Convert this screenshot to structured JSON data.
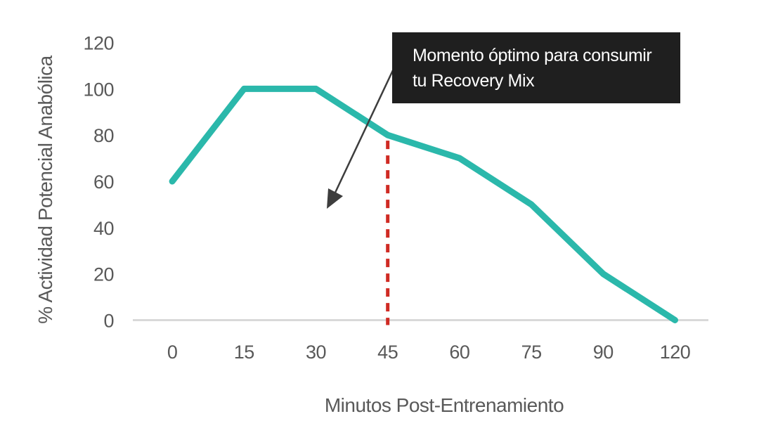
{
  "chart_data": {
    "type": "line",
    "categories": [
      "0",
      "15",
      "30",
      "45",
      "60",
      "75",
      "90",
      "120"
    ],
    "values": [
      60,
      100,
      100,
      80,
      70,
      50,
      20,
      0
    ],
    "xlabel": "Minutos Post-Entrenamiento",
    "ylabel": "% Actividad Potencial Anabólica",
    "yticks": [
      "0",
      "20",
      "40",
      "60",
      "80",
      "100",
      "120"
    ],
    "ylim": [
      0,
      120
    ],
    "grid": false,
    "legend": "none",
    "line_color": "#2bb8ab",
    "axis_line_color": "#d9d9d9",
    "tick_label_color": "#595959",
    "reference_line": {
      "at_category": "45",
      "at_value": 80,
      "style": "dashed",
      "color": "#cf2a23"
    },
    "annotation": {
      "lines": [
        "Momento óptimo para consumir",
        "tu Recovery Mix"
      ],
      "box_color": "#1f1f1f",
      "text_color": "#ffffff",
      "arrow_color": "#3d3d3d",
      "points_to_category": "45"
    }
  }
}
